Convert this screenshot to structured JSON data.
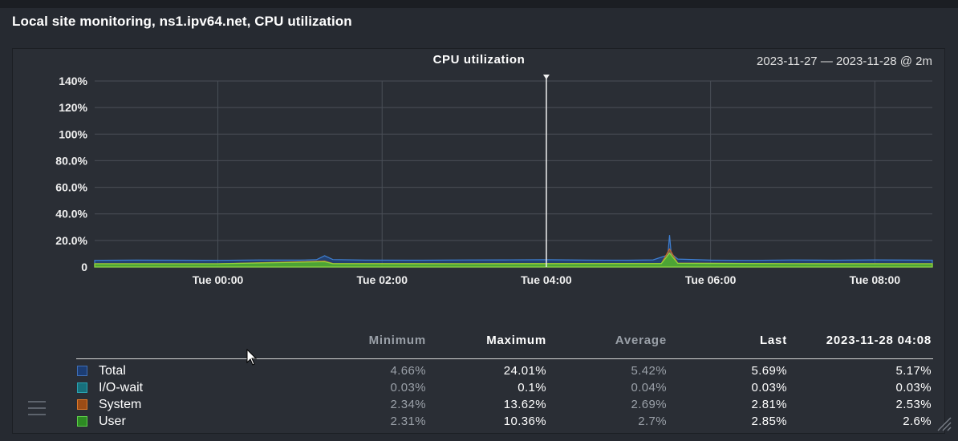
{
  "panel": {
    "title": "Local site monitoring, ns1.ipv64.net, CPU utilization"
  },
  "graph": {
    "title": "CPU utilization",
    "date_range": "2023-11-27 — 2023-11-28 @ 2m"
  },
  "chart_data": {
    "type": "area",
    "title": "CPU utilization",
    "y_ticks": [
      "140%",
      "120%",
      "100%",
      "80.0%",
      "60.0%",
      "40.0%",
      "20.0%",
      "0"
    ],
    "ylim": [
      0,
      140
    ],
    "x_ticks": [
      "Tue 00:00",
      "Tue 02:00",
      "Tue 04:00",
      "Tue 06:00",
      "Tue 08:00"
    ],
    "x_range_hours": [
      -1.5,
      8.7
    ],
    "grid": true,
    "cursor_time_hours": 4.0,
    "series": [
      {
        "name": "Total",
        "color": "#1f4e9a",
        "points": [
          [
            -1.5,
            5.0
          ],
          [
            -1,
            5.2
          ],
          [
            -0.5,
            5.1
          ],
          [
            0,
            5.0
          ],
          [
            0.5,
            5.3
          ],
          [
            1,
            5.2
          ],
          [
            1.2,
            5.5
          ],
          [
            1.3,
            8.5
          ],
          [
            1.4,
            5.6
          ],
          [
            1.8,
            5.2
          ],
          [
            2.5,
            5.1
          ],
          [
            3,
            5.3
          ],
          [
            3.5,
            5.4
          ],
          [
            4,
            5.5
          ],
          [
            4.5,
            5.2
          ],
          [
            5,
            5.1
          ],
          [
            5.3,
            5.4
          ],
          [
            5.48,
            9.0
          ],
          [
            5.5,
            24.0
          ],
          [
            5.52,
            10.0
          ],
          [
            5.6,
            6.0
          ],
          [
            6,
            5.2
          ],
          [
            6.5,
            5.0
          ],
          [
            7,
            5.3
          ],
          [
            7.5,
            5.1
          ],
          [
            8,
            5.4
          ],
          [
            8.5,
            5.2
          ],
          [
            8.7,
            5.1
          ]
        ]
      },
      {
        "name": "I/O-wait",
        "color": "#1b8fa0",
        "points": [
          [
            -1.5,
            0.05
          ],
          [
            8.7,
            0.05
          ]
        ]
      },
      {
        "name": "System",
        "color": "#d06a20",
        "points": [
          [
            -1.5,
            2.6
          ],
          [
            0,
            2.5
          ],
          [
            1.3,
            4.5
          ],
          [
            1.4,
            2.7
          ],
          [
            3,
            2.6
          ],
          [
            5.4,
            2.7
          ],
          [
            5.5,
            13.6
          ],
          [
            5.6,
            3.0
          ],
          [
            7,
            2.6
          ],
          [
            8.7,
            2.6
          ]
        ]
      },
      {
        "name": "User",
        "color": "#3fbf2f",
        "points": [
          [
            -1.5,
            2.4
          ],
          [
            0,
            2.4
          ],
          [
            1.3,
            4.0
          ],
          [
            1.4,
            2.5
          ],
          [
            3,
            2.4
          ],
          [
            5.4,
            2.6
          ],
          [
            5.5,
            10.4
          ],
          [
            5.6,
            2.8
          ],
          [
            7,
            2.5
          ],
          [
            8.7,
            2.4
          ]
        ]
      }
    ]
  },
  "legend": {
    "headers": [
      "Minimum",
      "Maximum",
      "Average",
      "Last",
      "2023-11-28 04:08"
    ],
    "rows": [
      {
        "name": "Total",
        "color": "#1c3d73",
        "border": "#3f6fb8",
        "min": "4.66%",
        "max": "24.01%",
        "avg": "5.42%",
        "last": "5.69%",
        "at": "5.17%"
      },
      {
        "name": "I/O-wait",
        "color": "#17707c",
        "border": "#2aa3b2",
        "min": "0.03%",
        "max": "0.1%",
        "avg": "0.04%",
        "last": "0.03%",
        "at": "0.03%"
      },
      {
        "name": "System",
        "color": "#9b4c16",
        "border": "#e07a2a",
        "min": "2.34%",
        "max": "13.62%",
        "avg": "2.69%",
        "last": "2.81%",
        "at": "2.53%"
      },
      {
        "name": "User",
        "color": "#2d8a23",
        "border": "#5fd14a",
        "min": "2.31%",
        "max": "10.36%",
        "avg": "2.7%",
        "last": "2.85%",
        "at": "2.6%"
      }
    ]
  },
  "icons": {
    "menu": "menu-icon",
    "resize": "resize-icon",
    "cursor": "mouse-pointer-icon"
  }
}
